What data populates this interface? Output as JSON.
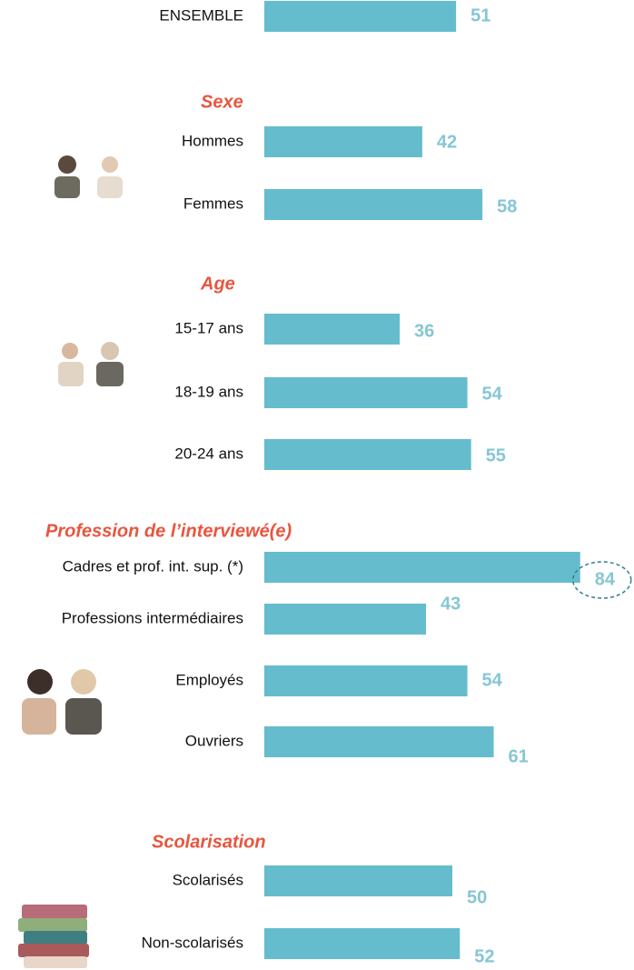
{
  "chart_data": {
    "type": "hbar",
    "color": "#65bccd",
    "value_color": "#86c6d4",
    "title_color": "#e8553f",
    "groups": [
      {
        "categories": [
          "ENSEMBLE"
        ],
        "values": [
          51
        ]
      },
      {
        "title": "Sexe",
        "categories": [
          "Hommes",
          "Femmes"
        ],
        "values": [
          42,
          58
        ]
      },
      {
        "title": "Age",
        "categories": [
          "15-17 ans",
          "18-19 ans",
          "20-24 ans"
        ],
        "values": [
          36,
          54,
          55
        ]
      },
      {
        "title": "Profession de l’interviewé(e)",
        "categories": [
          "Cadres et prof. int. sup. (*)",
          "Professions intermédiaires",
          "Employés",
          "Ouvriers"
        ],
        "values": [
          84,
          43,
          54,
          61
        ],
        "highlight_index": 0
      },
      {
        "title": "Scolarisation",
        "categories": [
          "Scolarisés",
          "Non-scolarisés"
        ],
        "values": [
          50,
          52
        ]
      }
    ]
  }
}
